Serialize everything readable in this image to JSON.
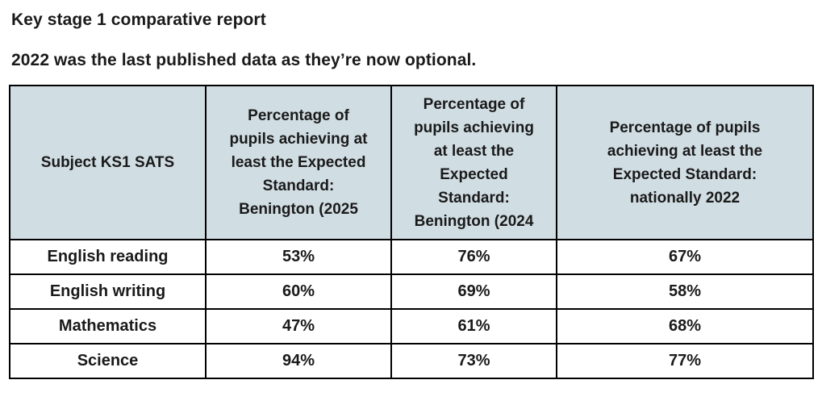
{
  "page": {
    "title": "Key stage 1 comparative report",
    "subtitle": "2022 was the last published data as they’re now optional."
  },
  "colors": {
    "header_bg": "#d0dde3",
    "border": "#000000",
    "text": "#1a1a1a",
    "background": "#ffffff"
  },
  "table": {
    "headers": [
      "Subject KS1 SATS",
      "Percentage of\npupils achieving at\nleast the Expected\nStandard:\nBenington (2025",
      "Percentage of\npupils achieving\nat least the\nExpected\nStandard:\nBenington (2024",
      "Percentage of pupils\nachieving at least the\nExpected Standard:\nnationally 2022"
    ],
    "rows": [
      {
        "subject": "English reading",
        "values": [
          "53%",
          "76%",
          "67%"
        ]
      },
      {
        "subject": "English writing",
        "values": [
          "60%",
          "69%",
          "58%"
        ]
      },
      {
        "subject": "Mathematics",
        "values": [
          "47%",
          "61%",
          "68%"
        ]
      },
      {
        "subject": "Science",
        "values": [
          "94%",
          "73%",
          "77%"
        ]
      }
    ]
  }
}
